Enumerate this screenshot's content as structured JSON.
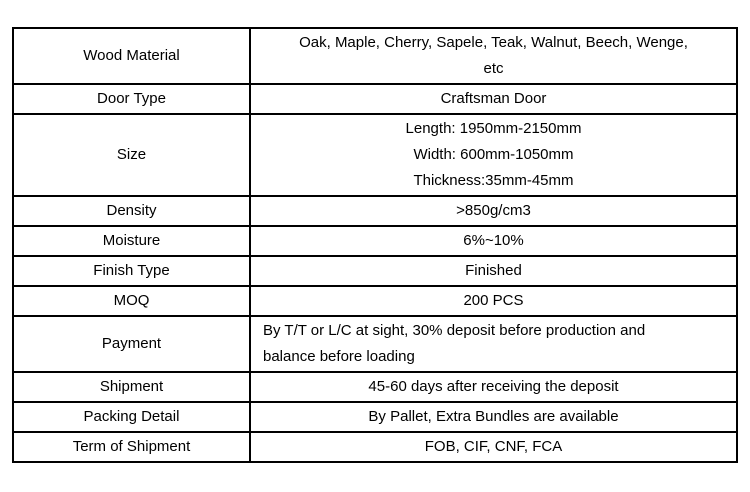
{
  "page": {
    "background_color": "#ffffff",
    "text_color": "#000000",
    "border_color": "#000000"
  },
  "table": {
    "rows": [
      {
        "label": "Wood Material",
        "value": "Oak, Maple, Cherry, Sapele, Teak, Walnut, Beech, Wenge,\netc",
        "label_valign": "top"
      },
      {
        "label": "Door Type",
        "value": "Craftsman Door"
      },
      {
        "label": "Size",
        "value": "Length: 1950mm-2150mm\nWidth: 600mm-1050mm\nThickness:35mm-45mm"
      },
      {
        "label": "Density",
        "value": ">850g/cm3"
      },
      {
        "label": "Moisture",
        "value": "6%~10%"
      },
      {
        "label": "Finish Type",
        "value": "Finished"
      },
      {
        "label": "MOQ",
        "value": "200 PCS"
      },
      {
        "label": "Payment",
        "value": "By T/T or L/C at sight, 30% deposit before production and\nbalance before loading",
        "value_align": "left",
        "label_valign": "top"
      },
      {
        "label": "Shipment",
        "value": "45-60 days after receiving the deposit"
      },
      {
        "label": "Packing Detail",
        "value": "By Pallet, Extra Bundles are available"
      },
      {
        "label": "Term of Shipment",
        "value": "FOB, CIF, CNF, FCA"
      }
    ]
  }
}
